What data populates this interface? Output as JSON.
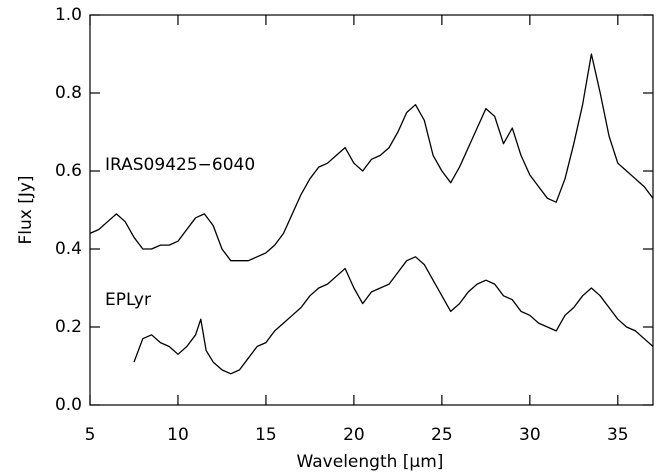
{
  "chart_data": {
    "type": "line",
    "xlabel": "Wavelength [μm]",
    "ylabel": "Flux [Jy]",
    "xlim": [
      5,
      37
    ],
    "ylim": [
      0,
      1.0
    ],
    "xticks": [
      5,
      10,
      15,
      20,
      25,
      30,
      35
    ],
    "yticks": [
      {
        "value": 0,
        "label": "0.0"
      },
      0.2,
      0.4,
      0.6,
      0.8,
      {
        "value": 1,
        "label": "1.0"
      }
    ],
    "series": [
      {
        "name": "IRAS09425−6040",
        "color": "#000000",
        "x": [
          5,
          5.5,
          6,
          6.5,
          7,
          7.5,
          8,
          8.5,
          9,
          9.5,
          10,
          10.5,
          11,
          11.5,
          12,
          12.5,
          13,
          13.5,
          14,
          14.5,
          15,
          15.5,
          16,
          16.5,
          17,
          17.5,
          18,
          18.5,
          19,
          19.5,
          20,
          20.5,
          21,
          21.5,
          22,
          22.5,
          23,
          23.5,
          24,
          24.5,
          25,
          25.5,
          26,
          26.5,
          27,
          27.5,
          28,
          28.5,
          29,
          29.5,
          30,
          30.5,
          31,
          31.5,
          32,
          32.5,
          33,
          33.5,
          34,
          34.5,
          35,
          35.5,
          36,
          36.5,
          37
        ],
        "values": [
          0.44,
          0.45,
          0.47,
          0.49,
          0.47,
          0.43,
          0.4,
          0.4,
          0.41,
          0.41,
          0.42,
          0.45,
          0.48,
          0.49,
          0.46,
          0.4,
          0.37,
          0.37,
          0.37,
          0.38,
          0.39,
          0.41,
          0.44,
          0.49,
          0.54,
          0.58,
          0.61,
          0.62,
          0.64,
          0.66,
          0.62,
          0.6,
          0.63,
          0.64,
          0.66,
          0.7,
          0.75,
          0.77,
          0.73,
          0.64,
          0.6,
          0.57,
          0.61,
          0.66,
          0.71,
          0.76,
          0.74,
          0.67,
          0.71,
          0.64,
          0.59,
          0.56,
          0.53,
          0.52,
          0.58,
          0.67,
          0.77,
          0.9,
          0.8,
          0.69,
          0.62,
          0.6,
          0.58,
          0.56,
          0.53
        ]
      },
      {
        "name": "EPLyr",
        "color": "#000000",
        "x": [
          7.5,
          8,
          8.5,
          9,
          9.5,
          10,
          10.5,
          11,
          11.3,
          11.6,
          12,
          12.5,
          13,
          13.5,
          14,
          14.5,
          15,
          15.5,
          16,
          16.5,
          17,
          17.5,
          18,
          18.5,
          19,
          19.5,
          20,
          20.5,
          21,
          21.5,
          22,
          22.5,
          23,
          23.5,
          24,
          24.5,
          25,
          25.5,
          26,
          26.5,
          27,
          27.5,
          28,
          28.5,
          29,
          29.5,
          30,
          30.5,
          31,
          31.5,
          32,
          32.5,
          33,
          33.5,
          34,
          34.5,
          35,
          35.5,
          36,
          36.5,
          37
        ],
        "values": [
          0.11,
          0.17,
          0.18,
          0.16,
          0.15,
          0.13,
          0.15,
          0.18,
          0.22,
          0.14,
          0.11,
          0.09,
          0.08,
          0.09,
          0.12,
          0.15,
          0.16,
          0.19,
          0.21,
          0.23,
          0.25,
          0.28,
          0.3,
          0.31,
          0.33,
          0.35,
          0.3,
          0.26,
          0.29,
          0.3,
          0.31,
          0.34,
          0.37,
          0.38,
          0.36,
          0.32,
          0.28,
          0.24,
          0.26,
          0.29,
          0.31,
          0.32,
          0.31,
          0.28,
          0.27,
          0.24,
          0.23,
          0.21,
          0.2,
          0.19,
          0.23,
          0.25,
          0.28,
          0.3,
          0.28,
          0.25,
          0.22,
          0.2,
          0.19,
          0.17,
          0.15
        ]
      }
    ]
  }
}
